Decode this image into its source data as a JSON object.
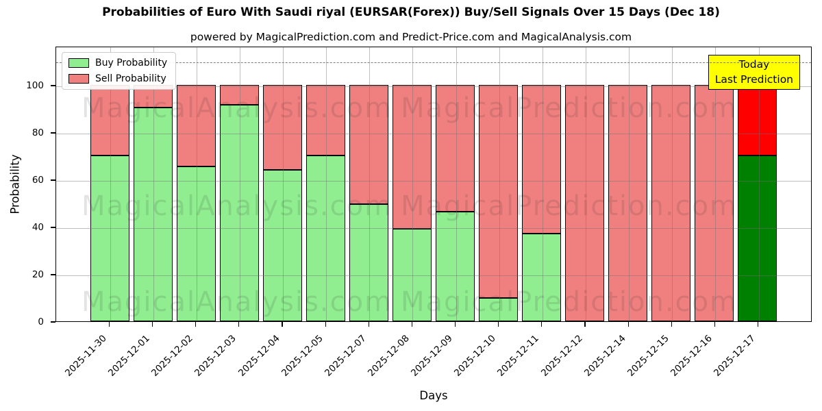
{
  "figure": {
    "title": "Probabilities of Euro With Saudi riyal (EURSAR(Forex)) Buy/Sell Signals Over 15 Days (Dec 18)",
    "subtitle": "powered by MagicalPrediction.com and Predict-Price.com and MagicalAnalysis.com"
  },
  "chart_data": {
    "type": "bar",
    "stacked": true,
    "title": "Probabilities of Euro With Saudi riyal (EURSAR(Forex)) Buy/Sell Signals Over 15 Days (Dec 18)",
    "subtitle": "powered by MagicalPrediction.com and Predict-Price.com and MagicalAnalysis.com",
    "xlabel": "Days",
    "ylabel": "Probability",
    "ylim": [
      0,
      116.5
    ],
    "yticks": [
      0,
      20,
      40,
      60,
      80,
      100
    ],
    "grid": true,
    "legend_position": "upper left",
    "categories": [
      "2025-11-30",
      "2025-12-01",
      "2025-12-02",
      "2025-12-03",
      "2025-12-04",
      "2025-12-05",
      "2025-12-07",
      "2025-12-08",
      "2025-12-09",
      "2025-12-10",
      "2025-12-11",
      "2025-12-12",
      "2025-12-14",
      "2025-12-15",
      "2025-12-16",
      "2025-12-17"
    ],
    "series": [
      {
        "name": "Buy Probability",
        "color": "#90EE90",
        "values": [
          70,
          90.5,
          65.5,
          91.5,
          64,
          70,
          49.5,
          39,
          46.5,
          10,
          37,
          0,
          0,
          0,
          0,
          70
        ]
      },
      {
        "name": "Sell Probability",
        "color": "#F08080",
        "values": [
          30,
          9.5,
          34.5,
          8.5,
          36,
          30,
          50.5,
          61,
          53.5,
          90,
          63,
          100,
          100,
          100,
          100,
          30
        ]
      }
    ],
    "today_bar": {
      "category": "2025-12-17",
      "buy_color": "#008000",
      "sell_color": "#FF0000"
    },
    "dashed_guideline_y": 110,
    "annotation": {
      "line1": "Today",
      "line2": "Last Prediction",
      "bg_color": "#FFFF00"
    },
    "watermarks": {
      "left_text": "MagicalAnalysis.com",
      "right_text": "MagicalPrediction.com"
    },
    "colors": {
      "axis": "#000000",
      "grid": "#b0b0b0",
      "dashed_line": "#7a7a7a",
      "legend_border": "#cccccc"
    }
  }
}
